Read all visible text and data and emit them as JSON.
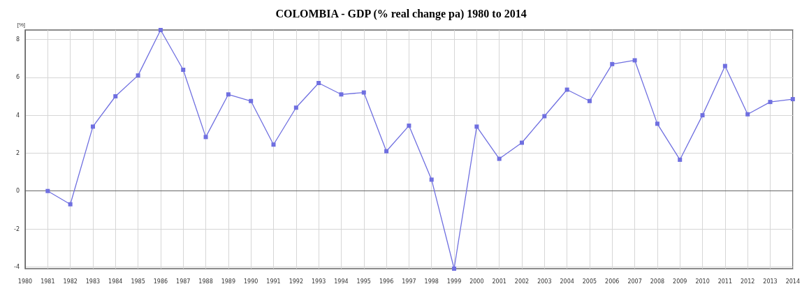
{
  "chart_data": {
    "type": "line",
    "title": "COLOMBIA - GDP (% real change pa) 1980 to 2014",
    "ylabel": "[%]",
    "x": [
      1981,
      1982,
      1983,
      1984,
      1985,
      1986,
      1987,
      1988,
      1989,
      1990,
      1991,
      1992,
      1993,
      1994,
      1995,
      1996,
      1997,
      1998,
      1999,
      2000,
      2001,
      2002,
      2003,
      2004,
      2005,
      2006,
      2007,
      2008,
      2009,
      2010,
      2011,
      2012,
      2013,
      2014
    ],
    "series": [
      {
        "color": "#6f6fe0",
        "values": [
          0.0,
          -0.7,
          3.4,
          5.0,
          6.1,
          8.5,
          6.4,
          2.85,
          5.1,
          4.75,
          2.45,
          4.4,
          5.7,
          5.1,
          5.2,
          2.1,
          3.45,
          0.6,
          -4.1,
          3.4,
          1.7,
          2.55,
          3.95,
          5.35,
          4.75,
          6.7,
          6.9,
          3.55,
          1.65,
          4.0,
          6.6,
          4.05,
          4.7,
          4.85
        ]
      }
    ],
    "xlim": [
      1980,
      2014
    ],
    "xticks": [
      1980,
      1981,
      1982,
      1983,
      1984,
      1985,
      1986,
      1987,
      1988,
      1989,
      1990,
      1991,
      1992,
      1993,
      1994,
      1995,
      1996,
      1997,
      1998,
      1999,
      2000,
      2001,
      2002,
      2003,
      2004,
      2005,
      2006,
      2007,
      2008,
      2009,
      2010,
      2011,
      2012,
      2013,
      2014
    ],
    "ylim": [
      -4.1,
      8.5
    ],
    "yticks": [
      -4,
      -2,
      0,
      2,
      4,
      6,
      8
    ],
    "grid": true,
    "marker": "square",
    "line_style": "solid"
  }
}
